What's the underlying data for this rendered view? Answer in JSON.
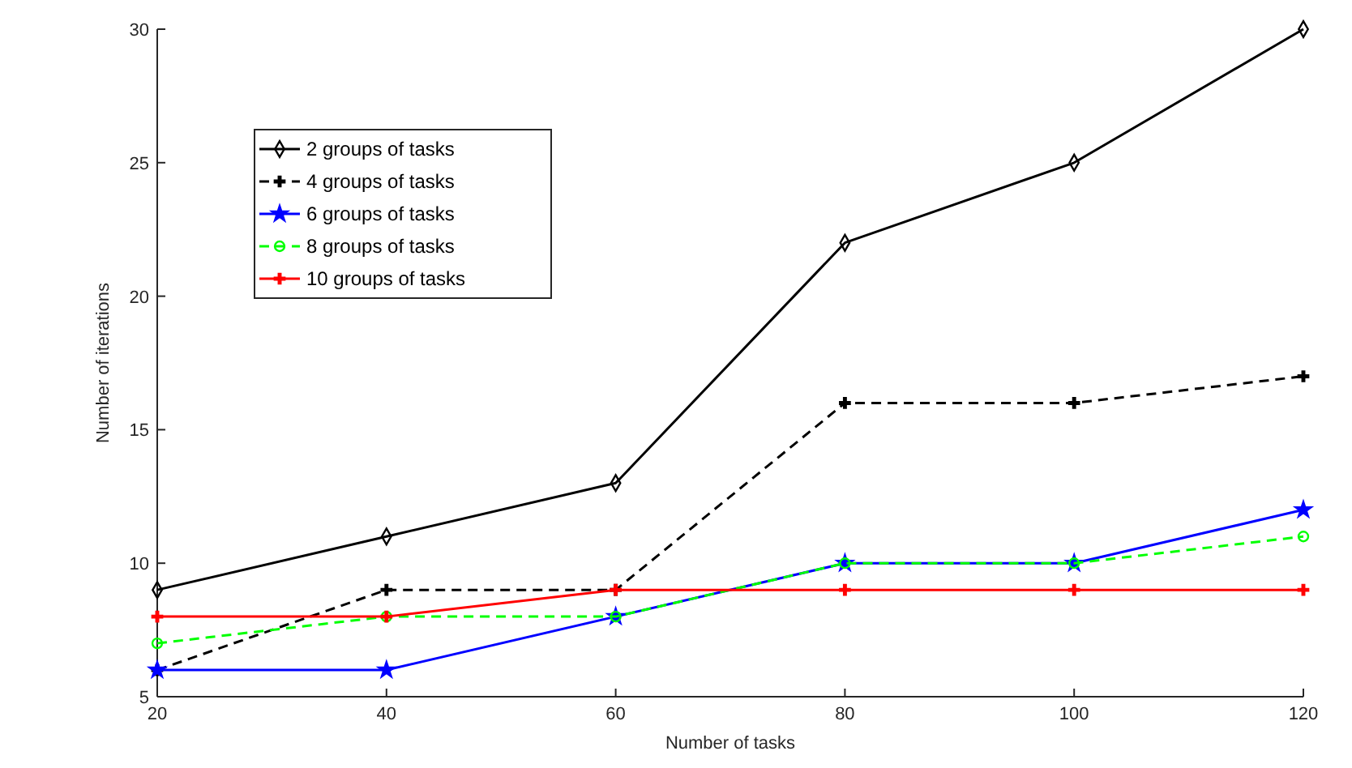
{
  "chart_data": {
    "type": "line",
    "xlabel": "Number of tasks",
    "ylabel": "Number of iterations",
    "x": [
      20,
      40,
      60,
      80,
      100,
      120
    ],
    "xlim": [
      20,
      120
    ],
    "xticks": [
      20,
      40,
      60,
      80,
      100,
      120
    ],
    "ylim": [
      5,
      30
    ],
    "yticks": [
      5,
      10,
      15,
      20,
      25,
      30
    ],
    "grid": false,
    "legend": "top left",
    "series": [
      {
        "name": "2 groups of tasks",
        "color": "#000000",
        "marker": "diamond",
        "line_style": "solid",
        "values": [
          9,
          11,
          13,
          22,
          25,
          30
        ]
      },
      {
        "name": "4 groups of tasks",
        "color": "#000000",
        "marker": "cross",
        "line_style": "dashed",
        "values": [
          6,
          9,
          9,
          16,
          16,
          17
        ]
      },
      {
        "name": "6 groups of tasks",
        "color": "#0000ff",
        "marker": "star",
        "line_style": "solid",
        "values": [
          6,
          6,
          8,
          10,
          10,
          12
        ]
      },
      {
        "name": "8 groups of tasks",
        "color": "#00ff00",
        "marker": "circle",
        "line_style": "dashed",
        "values": [
          7,
          8,
          8,
          10,
          10,
          11
        ]
      },
      {
        "name": "10 groups of tasks",
        "color": "#ff0000",
        "marker": "cross",
        "line_style": "solid",
        "values": [
          8,
          8,
          9,
          9,
          9,
          9
        ]
      }
    ]
  }
}
